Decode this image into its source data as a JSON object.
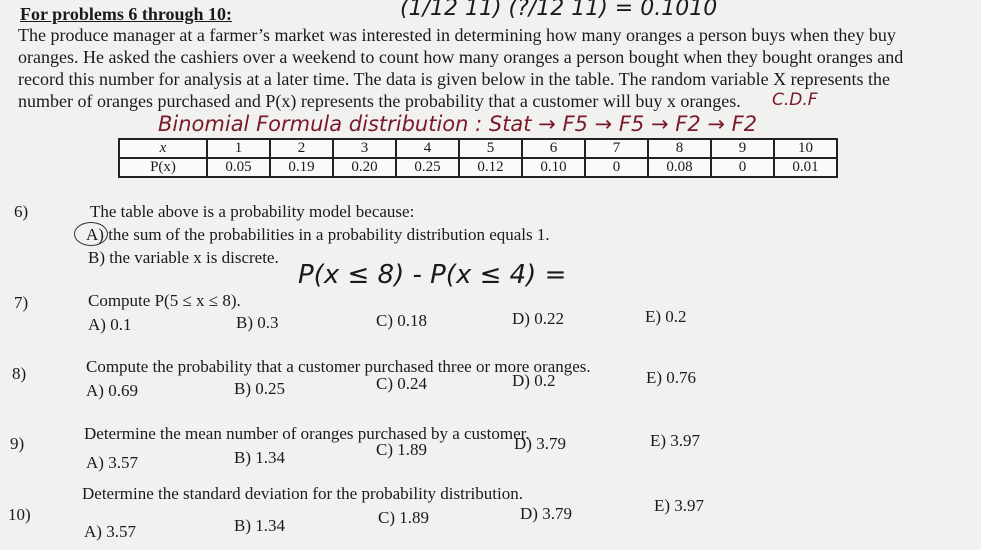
{
  "heading": "For problems 6 through 10:",
  "intro": [
    "The produce manager at a farmer’s market was interested in determining how many oranges a person buys when they buy",
    "oranges. He asked the cashiers over a weekend to count how many oranges a person bought when they bought oranges and",
    "record this number for analysis at a later time. The data is given below in the table. The random variable X represents the",
    "number of oranges purchased and P(x) represents the probability that a customer will buy x oranges."
  ],
  "handwriting": {
    "top": "(1/12  11)  (?/12  11) = 0.1010",
    "cdf": "C.D.F",
    "binomial": "Binomial Formula distribution : Stat → F5 → F5 → F2 → F2",
    "q7_work": "P(x ≤ 8) - P(x ≤ 4) ="
  },
  "table": {
    "row_labels": [
      "x",
      "P(x)"
    ],
    "x": [
      "1",
      "2",
      "3",
      "4",
      "5",
      "6",
      "7",
      "8",
      "9",
      "10"
    ],
    "p": [
      "0.05",
      "0.19",
      "0.20",
      "0.25",
      "0.12",
      "0.10",
      "0",
      "0.08",
      "0",
      "0.01"
    ]
  },
  "questions": [
    {
      "num": "6)",
      "text": "The table above is a probability model because:",
      "options": [
        "A) the sum of the probabilities in a probability distribution equals 1.",
        "B) the variable x is discrete."
      ]
    },
    {
      "num": "7)",
      "text": "Compute P(5 ≤ x ≤ 8).",
      "options": [
        "A) 0.1",
        "B) 0.3",
        "C) 0.18",
        "D) 0.22",
        "E) 0.2"
      ]
    },
    {
      "num": "8)",
      "text": "Compute the probability that a customer purchased three or more oranges.",
      "options": [
        "A) 0.69",
        "B) 0.25",
        "C) 0.24",
        "D) 0.2",
        "E) 0.76"
      ]
    },
    {
      "num": "9)",
      "text": "Determine the mean number of oranges purchased by a customer.",
      "options": [
        "A) 3.57",
        "B) 1.34",
        "C) 1.89",
        "D) 3.79",
        "E) 3.97"
      ]
    },
    {
      "num": "10)",
      "text": "Determine the standard deviation for the probability distribution.",
      "options": [
        "A) 3.57",
        "B) 1.34",
        "C) 1.89",
        "D) 3.79",
        "E) 3.97"
      ]
    }
  ]
}
